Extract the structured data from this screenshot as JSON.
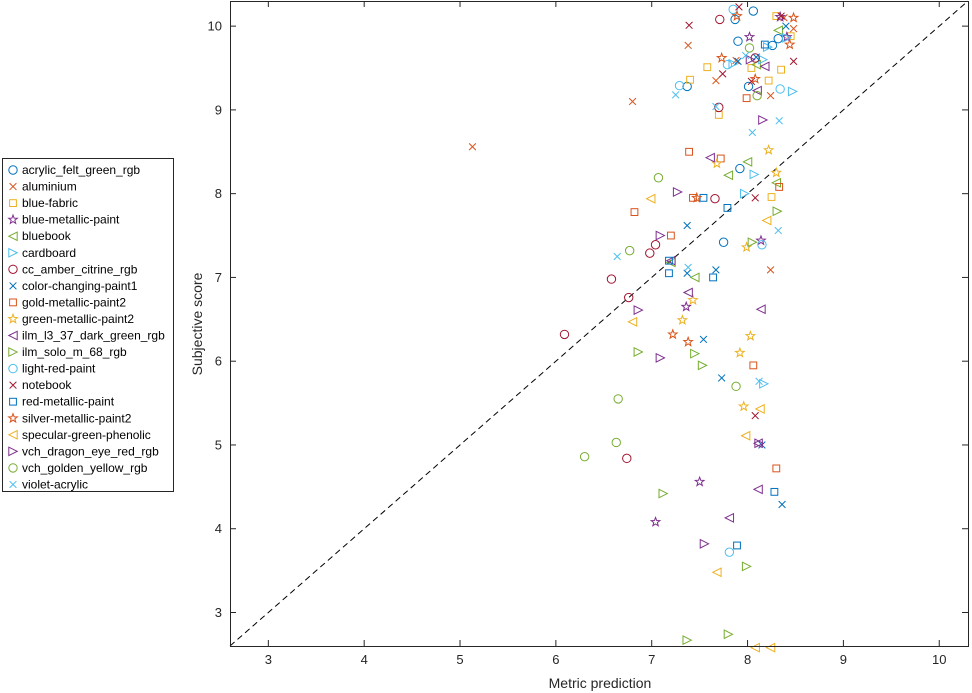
{
  "chart_data": {
    "type": "scatter",
    "title": "",
    "xlabel": "Metric prediction",
    "ylabel": "Subjective score",
    "xlim": [
      2.6,
      10.3
    ],
    "ylim": [
      2.6,
      10.3
    ],
    "xticks": [
      "3",
      "4",
      "5",
      "6",
      "7",
      "8",
      "9",
      "10"
    ],
    "yticks": [
      "3",
      "4",
      "5",
      "6",
      "7",
      "8",
      "9",
      "10"
    ],
    "grid": false,
    "legend_position": "outside-left",
    "reference_line": {
      "style": "dashed",
      "color": "#000000",
      "from": [
        2.6,
        2.6
      ],
      "to": [
        10.3,
        10.3
      ]
    },
    "series": [
      {
        "name": "acrylic_felt_green_rgb",
        "marker": "circle",
        "color": "#0072BD",
        "points": [
          [
            7.37,
            9.28
          ],
          [
            7.9,
            9.82
          ],
          [
            8.01,
            9.28
          ],
          [
            8.26,
            9.77
          ],
          [
            7.75,
            7.42
          ],
          [
            7.92,
            8.3
          ],
          [
            8.32,
            9.85
          ],
          [
            8.06,
            10.18
          ],
          [
            7.87,
            10.08
          ]
        ]
      },
      {
        "name": "aluminium",
        "marker": "x",
        "color": "#D95319",
        "points": [
          [
            5.13,
            8.56
          ],
          [
            6.8,
            9.1
          ],
          [
            7.38,
            9.77
          ],
          [
            7.67,
            9.35
          ],
          [
            7.88,
            9.59
          ],
          [
            8.24,
            9.17
          ],
          [
            8.38,
            10.1
          ],
          [
            8.48,
            9.97
          ],
          [
            8.24,
            7.09
          ]
        ]
      },
      {
        "name": "blue-fabric",
        "marker": "square",
        "color": "#EDB120",
        "points": [
          [
            7.4,
            9.36
          ],
          [
            7.58,
            9.51
          ],
          [
            7.7,
            8.94
          ],
          [
            8.04,
            9.5
          ],
          [
            8.22,
            9.35
          ],
          [
            8.35,
            9.48
          ],
          [
            8.45,
            9.88
          ],
          [
            8.3,
            10.12
          ],
          [
            8.25,
            7.96
          ]
        ]
      },
      {
        "name": "blue-metallic-paint",
        "marker": "star",
        "color": "#7E2F8E",
        "points": [
          [
            7.04,
            4.08
          ],
          [
            7.5,
            4.56
          ],
          [
            7.36,
            6.65
          ],
          [
            8.02,
            9.87
          ],
          [
            8.14,
            7.44
          ],
          [
            8.34,
            10.11
          ],
          [
            8.41,
            9.87
          ]
        ]
      },
      {
        "name": "bluebook",
        "marker": "triangle-left",
        "color": "#77AC30",
        "points": [
          [
            7.2,
            7.18
          ],
          [
            7.45,
            7.0
          ],
          [
            7.8,
            8.22
          ],
          [
            8.0,
            8.38
          ],
          [
            8.09,
            9.54
          ],
          [
            8.3,
            8.13
          ],
          [
            8.32,
            9.95
          ]
        ]
      },
      {
        "name": "cardboard",
        "marker": "triangle-right",
        "color": "#4DBEEE",
        "points": [
          [
            7.85,
            9.55
          ],
          [
            7.97,
            8.0
          ],
          [
            8.07,
            8.23
          ],
          [
            8.16,
            9.6
          ],
          [
            8.21,
            9.75
          ],
          [
            8.47,
            9.22
          ],
          [
            8.17,
            5.73
          ],
          [
            8.41,
            9.86
          ]
        ]
      },
      {
        "name": "cc_amber_citrine_rgb",
        "marker": "circle",
        "color": "#A2142F",
        "points": [
          [
            6.09,
            6.32
          ],
          [
            6.58,
            6.98
          ],
          [
            6.76,
            6.76
          ],
          [
            6.98,
            7.29
          ],
          [
            7.04,
            7.39
          ],
          [
            6.74,
            4.84
          ],
          [
            7.66,
            7.94
          ],
          [
            7.7,
            9.03
          ],
          [
            7.71,
            10.08
          ],
          [
            8.08,
            9.62
          ]
        ]
      },
      {
        "name": "color-changing-paint1",
        "marker": "x",
        "color": "#0072BD",
        "points": [
          [
            7.37,
            7.62
          ],
          [
            7.37,
            7.05
          ],
          [
            7.54,
            6.26
          ],
          [
            7.67,
            7.09
          ],
          [
            7.73,
            5.8
          ],
          [
            8.15,
            5.0
          ],
          [
            8.36,
            4.29
          ],
          [
            8.09,
            9.63
          ],
          [
            8.4,
            10.0
          ],
          [
            7.9,
            9.58
          ]
        ]
      },
      {
        "name": "gold-metallic-paint2",
        "marker": "square",
        "color": "#D95319",
        "points": [
          [
            6.82,
            7.78
          ],
          [
            7.2,
            7.5
          ],
          [
            7.39,
            8.5
          ],
          [
            7.43,
            7.95
          ],
          [
            7.72,
            8.42
          ],
          [
            7.99,
            9.14
          ],
          [
            8.06,
            5.95
          ],
          [
            8.3,
            4.72
          ],
          [
            8.33,
            8.08
          ]
        ]
      },
      {
        "name": "green-metallic-paint2",
        "marker": "star",
        "color": "#EDB120",
        "points": [
          [
            7.32,
            6.49
          ],
          [
            7.43,
            6.73
          ],
          [
            7.68,
            8.36
          ],
          [
            7.92,
            6.1
          ],
          [
            7.96,
            5.46
          ],
          [
            7.99,
            7.36
          ],
          [
            8.03,
            6.3
          ],
          [
            8.22,
            8.52
          ],
          [
            8.3,
            8.25
          ]
        ]
      },
      {
        "name": "ilm_l3_37_dark_green_rgb",
        "marker": "triangle-left",
        "color": "#7E2F8E",
        "points": [
          [
            7.2,
            7.2
          ],
          [
            7.38,
            6.82
          ],
          [
            7.61,
            8.43
          ],
          [
            8.11,
            4.47
          ],
          [
            8.11,
            5.02
          ],
          [
            8.14,
            6.62
          ],
          [
            7.81,
            4.13
          ],
          [
            8.1,
            9.23
          ],
          [
            8.18,
            9.52
          ]
        ]
      },
      {
        "name": "ilm_solo_m_68_rgb",
        "marker": "triangle-right",
        "color": "#77AC30",
        "points": [
          [
            6.86,
            6.11
          ],
          [
            7.12,
            4.42
          ],
          [
            7.37,
            2.67
          ],
          [
            7.45,
            6.09
          ],
          [
            7.53,
            5.95
          ],
          [
            7.8,
            2.74
          ],
          [
            7.99,
            3.55
          ],
          [
            8.31,
            7.79
          ],
          [
            8.05,
            7.42
          ]
        ]
      },
      {
        "name": "light-red-paint",
        "marker": "circle",
        "color": "#4DBEEE",
        "points": [
          [
            7.29,
            9.29
          ],
          [
            7.79,
            9.54
          ],
          [
            7.81,
            3.72
          ],
          [
            8.15,
            7.39
          ],
          [
            8.34,
            9.25
          ],
          [
            7.85,
            10.2
          ]
        ]
      },
      {
        "name": "notebook",
        "marker": "x",
        "color": "#A2142F",
        "points": [
          [
            7.39,
            10.01
          ],
          [
            7.74,
            9.43
          ],
          [
            7.91,
            10.23
          ],
          [
            8.04,
            9.34
          ],
          [
            8.08,
            7.95
          ],
          [
            8.08,
            5.35
          ],
          [
            8.35,
            10.12
          ],
          [
            8.48,
            9.58
          ]
        ]
      },
      {
        "name": "red-metallic-paint",
        "marker": "square",
        "color": "#0072BD",
        "points": [
          [
            7.18,
            7.05
          ],
          [
            7.18,
            7.2
          ],
          [
            7.54,
            7.95
          ],
          [
            7.64,
            7.0
          ],
          [
            7.79,
            7.83
          ],
          [
            7.89,
            3.8
          ],
          [
            8.18,
            9.78
          ],
          [
            8.28,
            4.44
          ]
        ]
      },
      {
        "name": "silver-metallic-paint2",
        "marker": "star",
        "color": "#D95319",
        "points": [
          [
            7.22,
            6.32
          ],
          [
            7.38,
            6.23
          ],
          [
            7.47,
            7.95
          ],
          [
            7.73,
            9.62
          ],
          [
            7.89,
            10.12
          ],
          [
            8.08,
            9.37
          ],
          [
            8.44,
            9.78
          ],
          [
            8.48,
            10.1
          ]
        ]
      },
      {
        "name": "specular-green-phenolic",
        "marker": "triangle-left",
        "color": "#EDB120",
        "points": [
          [
            6.8,
            6.47
          ],
          [
            6.99,
            7.94
          ],
          [
            7.68,
            3.48
          ],
          [
            7.98,
            5.11
          ],
          [
            8.08,
            2.58
          ],
          [
            8.13,
            5.43
          ],
          [
            8.2,
            7.68
          ],
          [
            8.24,
            2.58
          ]
        ]
      },
      {
        "name": "vch_dragon_eye_red_rgb",
        "marker": "triangle-right",
        "color": "#7E2F8E",
        "points": [
          [
            6.86,
            6.61
          ],
          [
            7.09,
            6.04
          ],
          [
            7.09,
            7.5
          ],
          [
            7.27,
            8.02
          ],
          [
            7.55,
            3.82
          ],
          [
            8.12,
            5.02
          ],
          [
            8.16,
            8.88
          ],
          [
            8.03,
            9.6
          ]
        ]
      },
      {
        "name": "vch_golden_yellow_rgb",
        "marker": "circle",
        "color": "#77AC30",
        "points": [
          [
            6.3,
            4.86
          ],
          [
            6.63,
            5.03
          ],
          [
            6.65,
            5.55
          ],
          [
            6.77,
            7.32
          ],
          [
            7.07,
            8.19
          ],
          [
            7.88,
            5.7
          ],
          [
            8.02,
            9.74
          ],
          [
            8.1,
            9.17
          ]
        ]
      },
      {
        "name": "violet-acrylic",
        "marker": "x",
        "color": "#4DBEEE",
        "points": [
          [
            6.64,
            7.25
          ],
          [
            7.25,
            9.18
          ],
          [
            7.38,
            7.12
          ],
          [
            7.67,
            9.04
          ],
          [
            8.05,
            8.73
          ],
          [
            8.32,
            7.56
          ],
          [
            8.33,
            8.87
          ],
          [
            8.12,
            5.76
          ],
          [
            7.98,
            9.65
          ]
        ]
      }
    ]
  }
}
